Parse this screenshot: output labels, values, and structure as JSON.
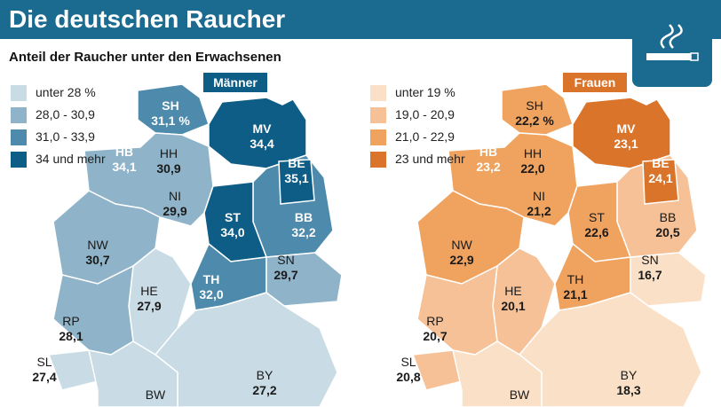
{
  "header": {
    "title": "Die deutschen Raucher",
    "subtitle": "Anteil der Raucher unter den Erwachsenen"
  },
  "maps": [
    {
      "label": "Männer",
      "color": "#0e5d86",
      "legend": [
        {
          "label": "unter 28 %",
          "color": "#c9dbe5"
        },
        {
          "label": "28,0 - 30,9",
          "color": "#8fb4c9"
        },
        {
          "label": "31,0 - 33,9",
          "color": "#4d8aab"
        },
        {
          "label": "34 und mehr",
          "color": "#0e5d86"
        }
      ],
      "regions": [
        {
          "code": "SH",
          "value": "31,1 %",
          "color": "#4d8aab"
        },
        {
          "code": "HB",
          "value": "34,1",
          "color": "#0e5d86"
        },
        {
          "code": "HH",
          "value": "30,9",
          "color": "#8fb4c9"
        },
        {
          "code": "MV",
          "value": "34,4",
          "color": "#0e5d86"
        },
        {
          "code": "NI",
          "value": "29,9",
          "color": "#8fb4c9"
        },
        {
          "code": "BB",
          "value": "32,2",
          "color": "#4d8aab"
        },
        {
          "code": "BE",
          "value": "35,1",
          "color": "#0e5d86"
        },
        {
          "code": "ST",
          "value": "34,0",
          "color": "#0e5d86"
        },
        {
          "code": "NW",
          "value": "30,7",
          "color": "#8fb4c9"
        },
        {
          "code": "HE",
          "value": "27,9",
          "color": "#c9dbe5"
        },
        {
          "code": "TH",
          "value": "32,0",
          "color": "#4d8aab"
        },
        {
          "code": "SN",
          "value": "29,7",
          "color": "#8fb4c9"
        },
        {
          "code": "RP",
          "value": "28,1",
          "color": "#8fb4c9"
        },
        {
          "code": "SL",
          "value": "27,4",
          "color": "#c9dbe5"
        },
        {
          "code": "BY",
          "value": "27,2",
          "color": "#c9dbe5"
        },
        {
          "code": "BW",
          "color": "#c9dbe5"
        }
      ]
    },
    {
      "label": "Frauen",
      "color": "#d9742a",
      "legend": [
        {
          "label": "unter 19 %",
          "color": "#fbe0c8"
        },
        {
          "label": "19,0 - 20,9",
          "color": "#f6c196"
        },
        {
          "label": "21,0 - 22,9",
          "color": "#f0a35f"
        },
        {
          "label": "23 und mehr",
          "color": "#d9742a"
        }
      ],
      "regions": [
        {
          "code": "SH",
          "value": "22,2 %",
          "color": "#f0a35f"
        },
        {
          "code": "HB",
          "value": "23,2",
          "color": "#d9742a"
        },
        {
          "code": "HH",
          "value": "22,0",
          "color": "#f0a35f"
        },
        {
          "code": "MV",
          "value": "23,1",
          "color": "#d9742a"
        },
        {
          "code": "NI",
          "value": "21,2",
          "color": "#f0a35f"
        },
        {
          "code": "BB",
          "value": "20,5",
          "color": "#f6c196"
        },
        {
          "code": "BE",
          "value": "24,1",
          "color": "#d9742a"
        },
        {
          "code": "ST",
          "value": "22,6",
          "color": "#f0a35f"
        },
        {
          "code": "NW",
          "value": "22,9",
          "color": "#f0a35f"
        },
        {
          "code": "HE",
          "value": "20,1",
          "color": "#f6c196"
        },
        {
          "code": "TH",
          "value": "21,1",
          "color": "#f0a35f"
        },
        {
          "code": "SN",
          "value": "16,7",
          "color": "#fbe0c8"
        },
        {
          "code": "RP",
          "value": "20,7",
          "color": "#f6c196"
        },
        {
          "code": "SL",
          "value": "20,8",
          "color": "#f6c196"
        },
        {
          "code": "BY",
          "value": "18,3",
          "color": "#fbe0c8"
        },
        {
          "code": "BW",
          "color": "#fbe0c8"
        }
      ]
    }
  ]
}
